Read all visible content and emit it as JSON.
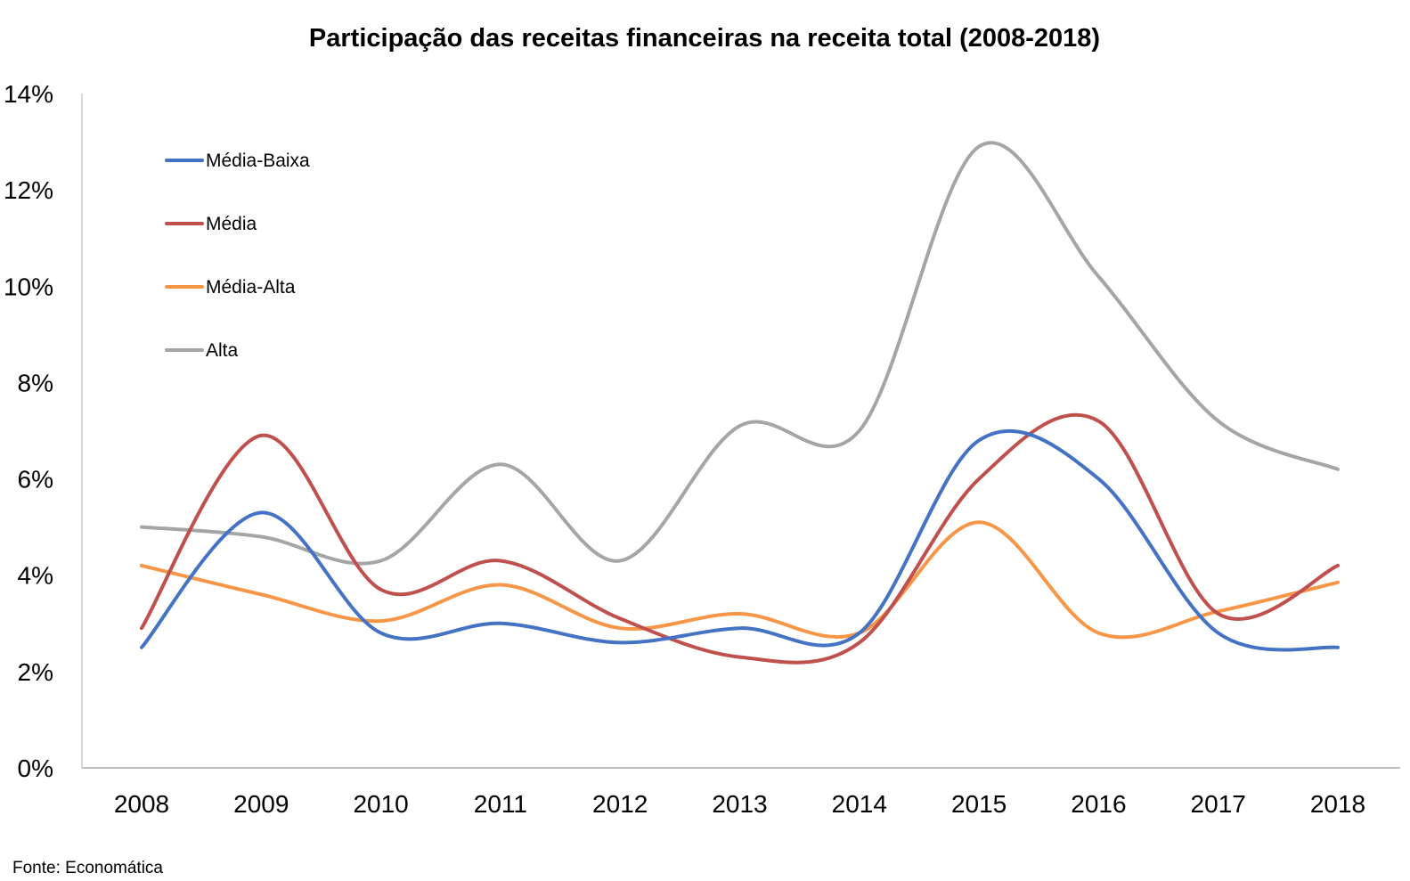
{
  "chart_data": {
    "type": "line",
    "title": "Participação das receitas financeiras na receita total (2008-2018)",
    "xlabel": "",
    "ylabel": "",
    "categories": [
      "2008",
      "2009",
      "2010",
      "2011",
      "2012",
      "2013",
      "2014",
      "2015",
      "2016",
      "2017",
      "2018"
    ],
    "ylim": [
      0,
      14
    ],
    "y_ticks": [
      0,
      2,
      4,
      6,
      8,
      10,
      12,
      14
    ],
    "y_tick_labels": [
      "0%",
      "2%",
      "4%",
      "6%",
      "8%",
      "10%",
      "12%",
      "14%"
    ],
    "grid": false,
    "smooth": true,
    "legend_position": "top-left inside plot",
    "series": [
      {
        "name": "Média-Baixa",
        "color": "#4472C4",
        "values": [
          2.5,
          5.3,
          2.8,
          3.0,
          2.6,
          2.9,
          2.8,
          6.8,
          6.0,
          2.8,
          2.5
        ]
      },
      {
        "name": "Média",
        "color": "#C0504D",
        "values": [
          2.9,
          6.9,
          3.7,
          4.3,
          3.1,
          2.3,
          2.6,
          6.0,
          7.2,
          3.2,
          4.2
        ]
      },
      {
        "name": "Média-Alta",
        "color": "#F79646",
        "values": [
          4.2,
          3.6,
          3.05,
          3.8,
          2.9,
          3.2,
          2.8,
          5.1,
          2.8,
          3.25,
          3.85
        ]
      },
      {
        "name": "Alta",
        "color": "#A5A5A5",
        "values": [
          5.0,
          4.8,
          4.3,
          6.3,
          4.3,
          7.1,
          7.0,
          12.9,
          10.2,
          7.2,
          6.2
        ]
      }
    ],
    "source": "Fonte: Economática"
  }
}
